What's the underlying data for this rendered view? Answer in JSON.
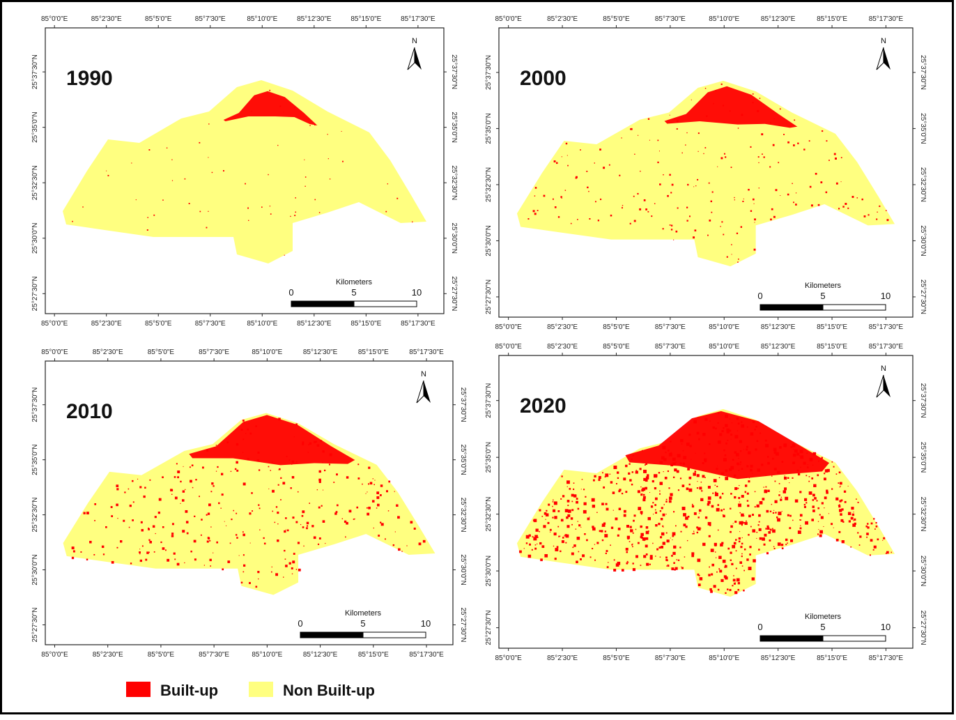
{
  "panels": [
    {
      "year": "1990"
    },
    {
      "year": "2000"
    },
    {
      "year": "2010"
    },
    {
      "year": "2020"
    }
  ],
  "graticule": {
    "longitudes": [
      "85°0'0\"E",
      "85°2'30\"E",
      "85°5'0\"E",
      "85°7'30\"E",
      "85°10'0\"E",
      "85°12'30\"E",
      "85°15'0\"E",
      "85°17'30\"E"
    ],
    "latitudes": [
      "25°37'30\"N",
      "25°35'0\"N",
      "25°32'30\"N",
      "25°30'0\"N",
      "25°27'30\"N"
    ]
  },
  "scale_bar": {
    "unit": "Kilometers",
    "labels": [
      "0",
      "5",
      "10"
    ]
  },
  "north_arrow": "N",
  "legend": [
    {
      "label": "Built-up",
      "color": "#ff0000"
    },
    {
      "label": "Non Built-up",
      "color": "#ffff80"
    }
  ]
}
